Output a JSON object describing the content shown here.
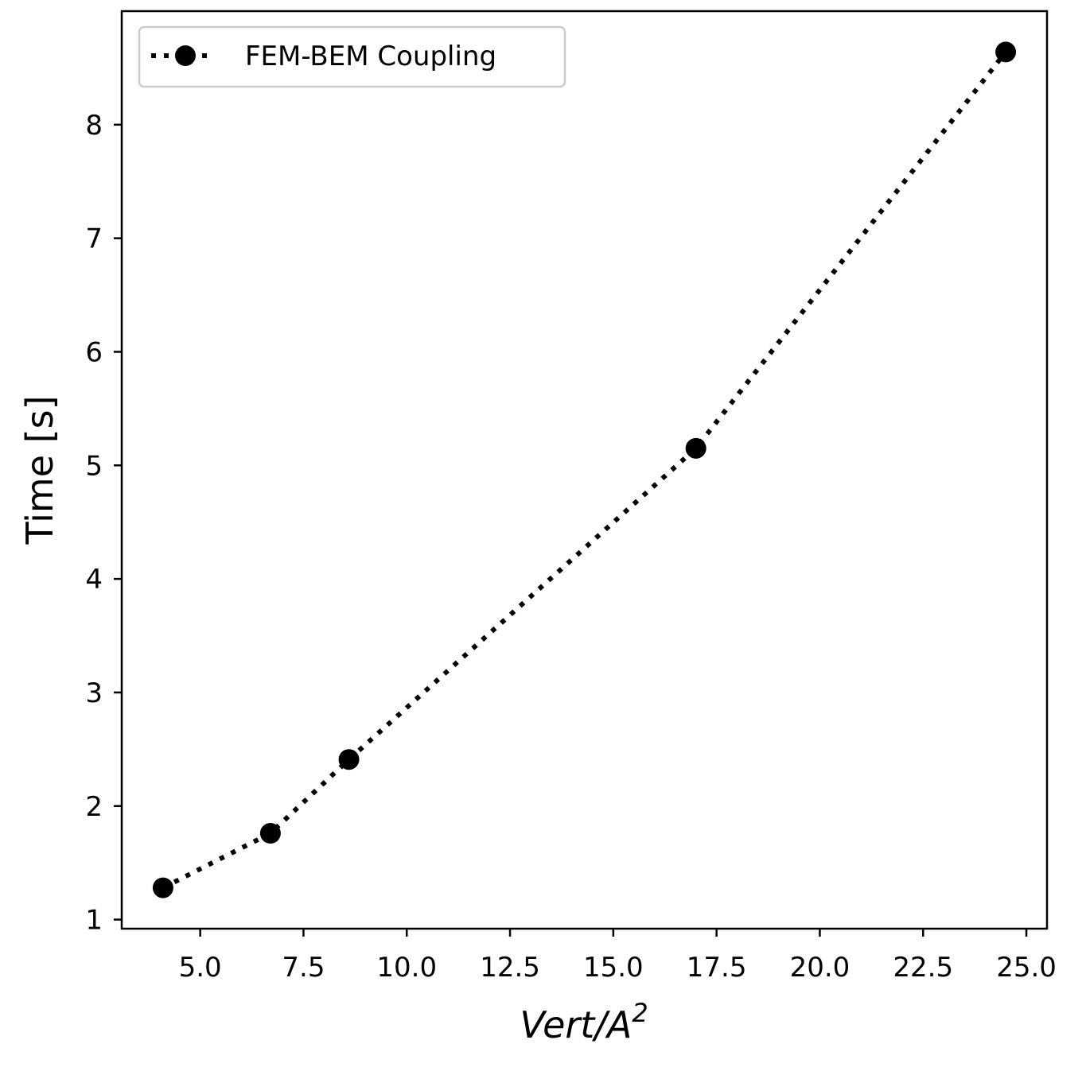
{
  "chart_data": {
    "type": "line",
    "x": [
      4.1,
      6.7,
      8.6,
      17.0,
      24.5
    ],
    "series": [
      {
        "name": "FEM-BEM Coupling",
        "values": [
          1.28,
          1.76,
          2.41,
          5.15,
          8.64
        ],
        "color": "#000000",
        "line_style": "dotted",
        "marker": "circle"
      }
    ],
    "xlabel": "Vert/A",
    "xlabel_sup": "2",
    "ylabel": "Time [s]",
    "xlim": [
      3.1,
      25.5
    ],
    "ylim": [
      0.92,
      9.0
    ],
    "xticks": [
      5.0,
      7.5,
      10.0,
      12.5,
      15.0,
      17.5,
      20.0,
      22.5,
      25.0
    ],
    "xtick_labels": [
      "5.0",
      "7.5",
      "10.0",
      "12.5",
      "15.0",
      "17.5",
      "20.0",
      "22.5",
      "25.0"
    ],
    "yticks": [
      1,
      2,
      3,
      4,
      5,
      6,
      7,
      8
    ],
    "ytick_labels": [
      "1",
      "2",
      "3",
      "4",
      "5",
      "6",
      "7",
      "8"
    ],
    "grid": false,
    "legend_position": "top-left"
  }
}
